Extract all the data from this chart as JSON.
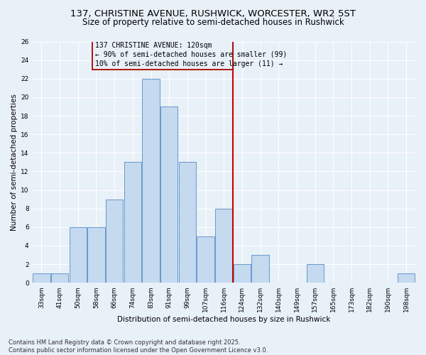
{
  "title1": "137, CHRISTINE AVENUE, RUSHWICK, WORCESTER, WR2 5ST",
  "title2": "Size of property relative to semi-detached houses in Rushwick",
  "xlabel": "Distribution of semi-detached houses by size in Rushwick",
  "ylabel": "Number of semi-detached properties",
  "categories": [
    "33sqm",
    "41sqm",
    "50sqm",
    "58sqm",
    "66sqm",
    "74sqm",
    "83sqm",
    "91sqm",
    "99sqm",
    "107sqm",
    "116sqm",
    "124sqm",
    "132sqm",
    "140sqm",
    "149sqm",
    "157sqm",
    "165sqm",
    "173sqm",
    "182sqm",
    "190sqm",
    "198sqm"
  ],
  "values": [
    1,
    1,
    6,
    6,
    9,
    13,
    22,
    19,
    13,
    5,
    8,
    2,
    3,
    0,
    0,
    2,
    0,
    0,
    0,
    0,
    1
  ],
  "bar_color": "#c5d9ef",
  "bar_edge_color": "#6699cc",
  "annotation_title": "137 CHRISTINE AVENUE: 120sqm",
  "annotation_line1": "← 90% of semi-detached houses are smaller (99)",
  "annotation_line2": "10% of semi-detached houses are larger (11) →",
  "vline_x_index": 10.5,
  "vline_color": "#cc0000",
  "annotation_box_color": "#aa0000",
  "ylim": [
    0,
    26
  ],
  "yticks": [
    0,
    2,
    4,
    6,
    8,
    10,
    12,
    14,
    16,
    18,
    20,
    22,
    24,
    26
  ],
  "footer1": "Contains HM Land Registry data © Crown copyright and database right 2025.",
  "footer2": "Contains public sector information licensed under the Open Government Licence v3.0.",
  "background_color": "#e8f0f8",
  "grid_color": "#ffffff",
  "title_fontsize": 9.5,
  "subtitle_fontsize": 8.5,
  "axis_label_fontsize": 7.5,
  "tick_fontsize": 6.5,
  "annotation_fontsize": 7,
  "footer_fontsize": 6
}
